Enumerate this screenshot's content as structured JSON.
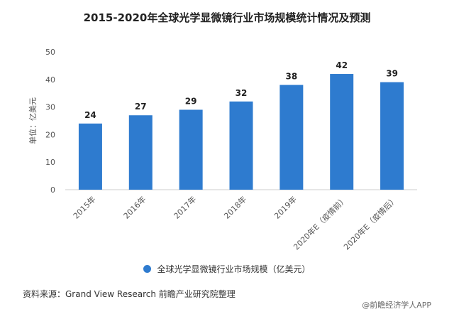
{
  "chart_data": {
    "type": "bar",
    "title": "2015-2020年全球光学显微镜行业市场规模统计情况及预测",
    "ylabel": "单位：亿美元",
    "xlabel": "",
    "categories": [
      "2015年",
      "2016年",
      "2017年",
      "2018年",
      "2019年",
      "2020年E（疫情前）",
      "2020年E（疫情后）"
    ],
    "series": [
      {
        "name": "全球光学显微镜行业市场规模（亿美元）",
        "values": [
          24,
          27,
          29,
          32,
          38,
          42,
          39
        ],
        "color": "#2e7bcf"
      }
    ],
    "ylim": [
      0,
      50
    ],
    "yticks": [
      0,
      10,
      20,
      30,
      40,
      50
    ],
    "grid": false,
    "legend_position": "bottom"
  },
  "footer": {
    "source": "资料来源：Grand View Research 前瞻产业研究院整理",
    "brand": "@前瞻经济学人APP"
  },
  "colors": {
    "bar": "#2e7bcf",
    "axis": "#cccccc",
    "text": "#333333"
  }
}
